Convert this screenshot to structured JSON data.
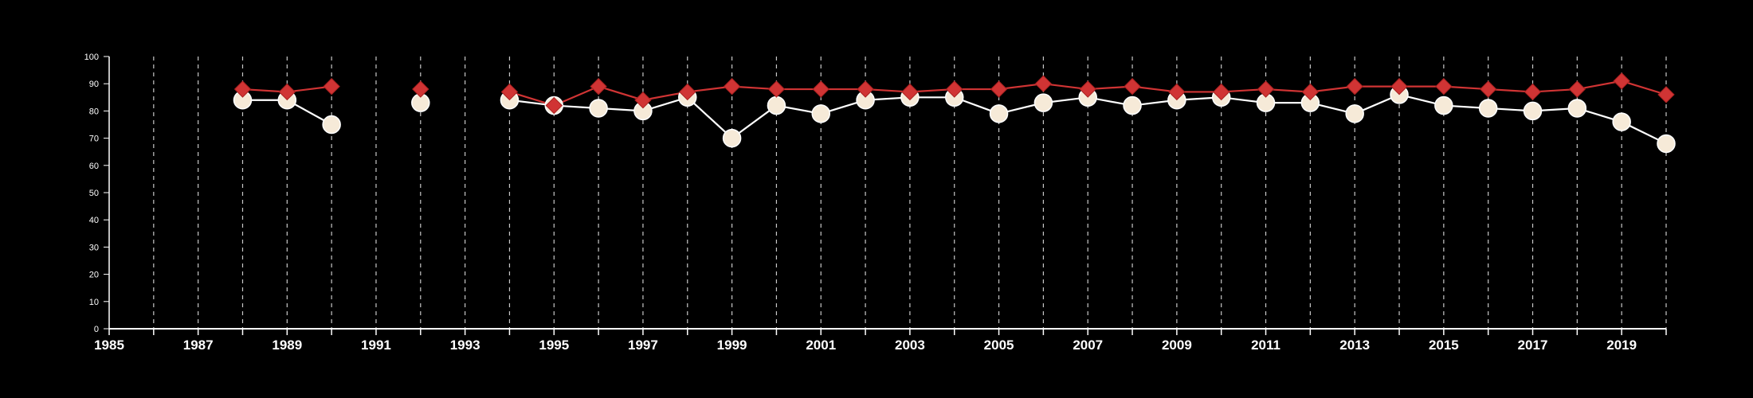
{
  "chart_data": {
    "type": "line",
    "title": "",
    "xlabel": "",
    "ylabel": "",
    "xlim": [
      1985,
      2020
    ],
    "ylim": [
      0,
      100
    ],
    "y_ticks": [
      0,
      10,
      20,
      30,
      40,
      50,
      60,
      70,
      80,
      90,
      100
    ],
    "x_ticks": [
      1985,
      1987,
      1989,
      1991,
      1993,
      1995,
      1997,
      1999,
      2001,
      2003,
      2005,
      2007,
      2009,
      2011,
      2013,
      2015,
      2017,
      2019
    ],
    "vertical_dashed_gridlines": "every year",
    "background_color": "#000000",
    "series": [
      {
        "marker": "diamond",
        "color": "#d03434",
        "points": [
          [
            1988,
            88
          ],
          [
            1989,
            87
          ],
          [
            1990,
            89
          ],
          [
            1992,
            88
          ],
          [
            1994,
            87
          ],
          [
            1995,
            82
          ],
          [
            1996,
            89
          ],
          [
            1997,
            84
          ],
          [
            1998,
            87
          ],
          [
            1999,
            89
          ],
          [
            2000,
            88
          ],
          [
            2001,
            88
          ],
          [
            2002,
            88
          ],
          [
            2003,
            87
          ],
          [
            2004,
            88
          ],
          [
            2005,
            88
          ],
          [
            2006,
            90
          ],
          [
            2007,
            88
          ],
          [
            2008,
            89
          ],
          [
            2009,
            87
          ],
          [
            2010,
            87
          ],
          [
            2011,
            88
          ],
          [
            2012,
            87
          ],
          [
            2013,
            89
          ],
          [
            2014,
            89
          ],
          [
            2015,
            89
          ],
          [
            2016,
            88
          ],
          [
            2017,
            87
          ],
          [
            2018,
            88
          ],
          [
            2019,
            91
          ],
          [
            2020,
            86
          ]
        ]
      },
      {
        "marker": "circle",
        "color": "#f6ead8",
        "line_color": "#ffffff",
        "points": [
          [
            1988,
            84
          ],
          [
            1989,
            84
          ],
          [
            1990,
            75
          ],
          [
            1992,
            83
          ],
          [
            1994,
            84
          ],
          [
            1995,
            82
          ],
          [
            1996,
            81
          ],
          [
            1997,
            80
          ],
          [
            1998,
            85
          ],
          [
            1999,
            70
          ],
          [
            2000,
            82
          ],
          [
            2001,
            79
          ],
          [
            2002,
            84
          ],
          [
            2003,
            85
          ],
          [
            2004,
            85
          ],
          [
            2005,
            79
          ],
          [
            2006,
            83
          ],
          [
            2007,
            85
          ],
          [
            2008,
            82
          ],
          [
            2009,
            84
          ],
          [
            2010,
            85
          ],
          [
            2011,
            83
          ],
          [
            2012,
            83
          ],
          [
            2013,
            79
          ],
          [
            2014,
            86
          ],
          [
            2015,
            82
          ],
          [
            2016,
            81
          ],
          [
            2017,
            80
          ],
          [
            2018,
            81
          ],
          [
            2019,
            76
          ],
          [
            2020,
            68
          ]
        ]
      }
    ]
  }
}
